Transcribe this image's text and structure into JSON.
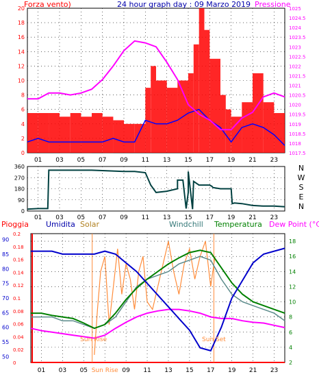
{
  "colors": {
    "wind": "#ff0000",
    "wind_gust": "#ff0000",
    "wind_avg": "#0000ff",
    "pressure": "#ff00ff",
    "direction": "#004040",
    "humidity": "#0000cc",
    "solar": "#ff8c3a",
    "windchill": "#5a8a8a",
    "temperature": "#008000",
    "dewpoint": "#ff00ff",
    "rain": "#ff0000",
    "sun_markers": "#ff8c3a"
  },
  "top_chart": {
    "title": "24 hour graph day : 09 Marzo 2019",
    "left_label": "Forza vento)",
    "right_label": "Pressione",
    "left_ticks": [
      "0",
      "2",
      "4",
      "6",
      "8",
      "10",
      "12",
      "14",
      "16",
      "18",
      "20"
    ],
    "right_ticks": [
      "1017.5",
      "1018",
      "1018.5",
      "1019",
      "1019.5",
      "1020",
      "1020.5",
      "1021",
      "1021.5",
      "1022",
      "1022.5",
      "1023",
      "1023.5",
      "1024",
      "1024.5",
      "1025"
    ],
    "x_ticks": [
      "01",
      "03",
      "05",
      "07",
      "09",
      "11",
      "13",
      "15",
      "17",
      "19",
      "21",
      "23"
    ]
  },
  "mid_chart": {
    "left_ticks": [
      "0",
      "90",
      "180",
      "270",
      "360"
    ],
    "compass": [
      "N",
      "W",
      "S",
      "E",
      "N"
    ],
    "x_ticks": [
      "01",
      "03",
      "05",
      "07",
      "09",
      "11",
      "13",
      "15",
      "17",
      "19",
      "21",
      "23"
    ]
  },
  "bottom_chart": {
    "labels": {
      "rain": "Pioggia",
      "humidity": "Umidita",
      "solar": "Solar",
      "windchill": "Windchill",
      "temperature": "Temperatura",
      "dewpoint": "Dew Point (°C)"
    },
    "rain_ticks": [
      "0",
      "0.02",
      "0.04",
      "0.06",
      "0.08",
      "0.1",
      "0.12",
      "0.14",
      "0.16",
      "0.18",
      "0.2"
    ],
    "humidity_ticks": [
      "50",
      "55",
      "60",
      "65",
      "70",
      "75",
      "80",
      "85",
      "90"
    ],
    "temp_ticks": [
      "2",
      "4",
      "6",
      "8",
      "10",
      "12",
      "14",
      "16",
      "18"
    ],
    "x_ticks": [
      "01",
      "03",
      "05",
      "Sun Rise",
      "09",
      "11",
      "13",
      "15",
      "17",
      "19",
      "21",
      "23"
    ],
    "sun_rise_label": "Sun Rise",
    "sun_set_label": "Sun Set"
  },
  "chart_data": [
    {
      "type": "line",
      "title": "24 hour graph day : 09 Marzo 2019",
      "x_unit": "hour",
      "xlim": [
        0,
        24
      ],
      "ylabel": "Forza vento)",
      "ylim": [
        0,
        20
      ],
      "y2label": "Pressione",
      "y2lim": [
        1017.5,
        1025
      ],
      "series": [
        {
          "role": "wind_gust",
          "axis": "left",
          "style": "bars",
          "x": [
            0,
            1,
            2,
            3,
            4,
            5,
            6,
            7,
            8,
            9,
            10,
            11,
            11.5,
            12,
            13,
            14,
            15,
            15.5,
            16,
            16.5,
            17,
            18,
            18.5,
            19,
            20,
            21,
            22,
            23,
            24
          ],
          "values": [
            5.5,
            5.5,
            5.5,
            5,
            5.5,
            5,
            5.5,
            5,
            4.5,
            4,
            4,
            9,
            12,
            10,
            9,
            10,
            11,
            15,
            20,
            17,
            13,
            8,
            6,
            5,
            7,
            11,
            7,
            5.5,
            5
          ]
        },
        {
          "role": "wind_avg",
          "axis": "left",
          "x": [
            0,
            1,
            2,
            3,
            4,
            5,
            6,
            7,
            8,
            9,
            10,
            11,
            12,
            13,
            14,
            15,
            16,
            17,
            18,
            19,
            20,
            21,
            22,
            23,
            24
          ],
          "values": [
            1.5,
            2,
            1.5,
            1.5,
            1.5,
            1.5,
            1.5,
            1.5,
            2,
            1.5,
            1.5,
            4.5,
            4,
            4,
            4.5,
            5.5,
            6,
            4.5,
            3.5,
            1.5,
            3.5,
            4,
            3.5,
            2.5,
            1
          ]
        },
        {
          "role": "pressure",
          "axis": "right",
          "x": [
            0,
            1,
            2,
            3,
            4,
            5,
            6,
            7,
            8,
            9,
            10,
            11,
            12,
            13,
            14,
            15,
            16,
            17,
            18,
            19,
            20,
            21,
            22,
            23,
            24
          ],
          "values": [
            1020.3,
            1020.3,
            1020.6,
            1020.6,
            1020.5,
            1020.6,
            1020.8,
            1021.3,
            1022,
            1022.8,
            1023.3,
            1023.2,
            1023.0,
            1022.2,
            1021.3,
            1020.0,
            1019.5,
            1019.2,
            1018.7,
            1018.7,
            1019.3,
            1019.6,
            1020.4,
            1020.6,
            1020.4
          ]
        }
      ]
    },
    {
      "type": "line",
      "x_unit": "hour",
      "xlim": [
        0,
        24
      ],
      "ylim": [
        0,
        360
      ],
      "series": [
        {
          "role": "wind_direction",
          "x": [
            0,
            1,
            1.9,
            2,
            6,
            9,
            10,
            11,
            11.5,
            12,
            13,
            14,
            14,
            14.5,
            14.8,
            15,
            15,
            15.4,
            15.5,
            16,
            17,
            17.2,
            17.3,
            18,
            19,
            19.1,
            19.3,
            20,
            21,
            22,
            23,
            24
          ],
          "values": [
            15,
            20,
            20,
            330,
            330,
            320,
            320,
            310,
            210,
            150,
            160,
            180,
            250,
            250,
            20,
            150,
            320,
            15,
            240,
            210,
            210,
            200,
            190,
            180,
            180,
            60,
            65,
            60,
            45,
            40,
            40,
            35
          ]
        }
      ]
    },
    {
      "type": "line",
      "x_unit": "hour",
      "xlim": [
        0,
        24
      ],
      "ylabel": "Pioggia",
      "ylim": [
        0,
        0.2
      ],
      "y2label": "Dew Point (°C)",
      "y2lim": [
        2,
        19
      ],
      "series": [
        {
          "role": "rain",
          "axis": "rain",
          "x": [
            0,
            24
          ],
          "values": [
            0,
            0
          ]
        },
        {
          "role": "humidity",
          "axis": "humidity",
          "ylim": [
            48,
            92
          ],
          "x": [
            0,
            1,
            2,
            3,
            4,
            5,
            6,
            7,
            8,
            9,
            10,
            11,
            12,
            13,
            14,
            15,
            16,
            17,
            18,
            19,
            20,
            21,
            22,
            23,
            24
          ],
          "values": [
            86,
            86,
            86,
            85,
            85,
            85,
            85,
            86,
            85,
            82,
            79,
            75,
            71,
            67,
            63,
            59,
            53,
            52,
            60,
            70,
            76,
            82,
            85,
            86,
            87
          ]
        },
        {
          "role": "solar",
          "axis": "temp",
          "x": [
            6.0,
            6.3,
            6.6,
            7.0,
            7.4,
            7.8,
            8.2,
            8.6,
            9.0,
            9.4,
            9.8,
            10.2,
            10.6,
            11.0,
            11.5,
            12.0,
            12.5,
            13.0,
            13.5,
            14.0,
            14.5,
            15.0,
            15.5,
            16.0,
            16.5,
            17.0,
            17.4
          ],
          "values": [
            3,
            9,
            14,
            16,
            7,
            12,
            17,
            11,
            15,
            13,
            9,
            14,
            16,
            10,
            9,
            12,
            15,
            18,
            14,
            11,
            15,
            17,
            13,
            16,
            18,
            12,
            16
          ]
        },
        {
          "role": "windchill",
          "axis": "temp",
          "x": [
            0,
            1,
            2,
            3,
            4,
            5,
            6,
            7,
            8,
            9,
            10,
            11,
            12,
            13,
            14,
            15,
            16,
            17,
            18,
            19,
            20,
            21,
            22,
            23,
            24
          ],
          "values": [
            8,
            8,
            8,
            7.5,
            7.5,
            7,
            6.5,
            7,
            8,
            10,
            12,
            13,
            13.5,
            14,
            15,
            15.5,
            16,
            15.5,
            13,
            11,
            10,
            9.5,
            9,
            8.5,
            7.5
          ]
        },
        {
          "role": "temperature",
          "axis": "temp",
          "x": [
            0,
            1,
            2,
            3,
            4,
            5,
            6,
            7,
            8,
            9,
            10,
            11,
            12,
            13,
            14,
            15,
            16,
            17,
            18,
            19,
            20,
            21,
            22,
            23,
            24
          ],
          "values": [
            8.5,
            8.5,
            8.2,
            8,
            7.8,
            7.2,
            6.5,
            7,
            8.5,
            10.3,
            11.8,
            13,
            14,
            15,
            15.8,
            16.5,
            16.8,
            16.5,
            14.5,
            12.5,
            11,
            10,
            9.5,
            9,
            8.5
          ]
        },
        {
          "role": "dewpoint",
          "axis": "temp",
          "x": [
            0,
            1,
            2,
            3,
            4,
            5,
            6,
            7,
            8,
            9,
            10,
            11,
            12,
            13,
            14,
            15,
            16,
            17,
            18,
            19,
            20,
            21,
            22,
            23,
            24
          ],
          "values": [
            6.5,
            6.2,
            6,
            5.8,
            5.6,
            5.4,
            5.2,
            5.6,
            6.5,
            7.3,
            8,
            8.5,
            8.8,
            9,
            9,
            8.8,
            8.5,
            8,
            7.8,
            7.8,
            7.5,
            7.3,
            7.2,
            6.9,
            6.6
          ]
        }
      ],
      "annotations": {
        "sun_rise_hour": 5.8,
        "sun_set_hour": 17.3
      }
    }
  ]
}
